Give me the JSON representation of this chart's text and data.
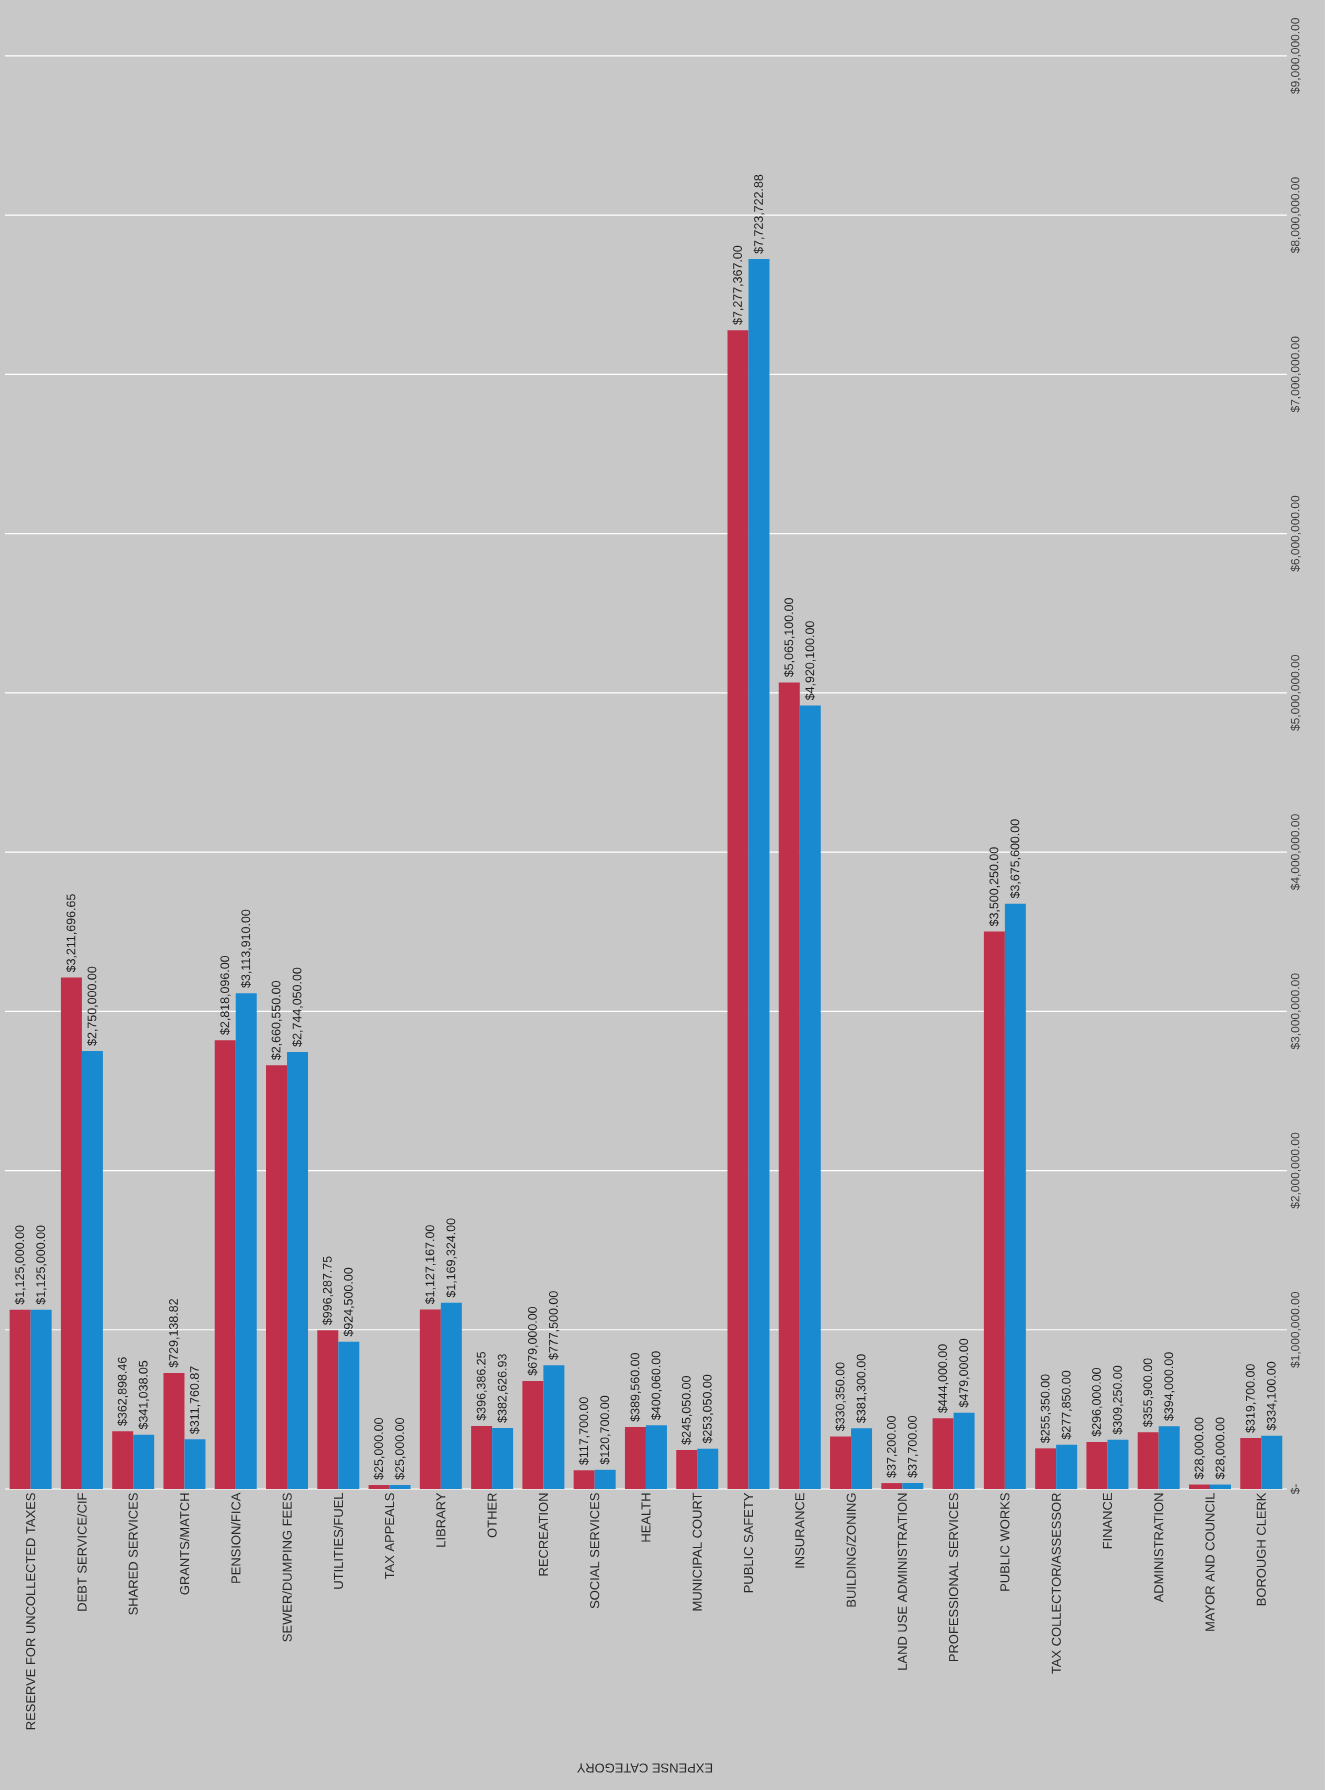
{
  "chart_data": {
    "type": "bar",
    "xlabel": "EXPENSE CATEGORY",
    "categories": [
      "RESERVE FOR UNCOLLECTED TAXES",
      "DEBT SERVICE/CIF",
      "SHARED SERVICES",
      "GRANTS/MATCH",
      "PENSION/FICA",
      "SEWER/DUMPING FEES",
      "UTILITIES/FUEL",
      "TAX APPEALS",
      "LIBRARY",
      "OTHER",
      "RECREATION",
      "SOCIAL SERVICES",
      "HEALTH",
      "MUNICIPAL COURT",
      "PUBLIC SAFETY",
      "INSURANCE",
      "BUILDING/ZONING",
      "LAND USE ADMINISTRATION",
      "PROFESSIONAL SERVICES",
      "PUBLIC WORKS",
      "TAX COLLECTOR/ASSESSOR",
      "FINANCE",
      "ADMINISTRATION",
      "MAYOR AND COUNCIL",
      "BOROUGH CLERK"
    ],
    "series": [
      {
        "color": "#c0304a",
        "values": [
          1125000,
          3211696.65,
          362898.46,
          729138.82,
          2818096,
          2660550,
          996287.75,
          25000,
          1127167,
          396386.25,
          679000,
          117700,
          389560,
          245050,
          7277367,
          5065100,
          330350,
          37200,
          444000,
          3500250,
          255350,
          296000,
          355900,
          28000,
          319700
        ],
        "value_labels": [
          "$1,125,000.00",
          "$3,211,696.65",
          "$362,898.46",
          "$729,138.82",
          "$2,818,096.00",
          "$2,660,550.00",
          "$996,287.75",
          "$25,000.00",
          "$1,127,167.00",
          "$396,386.25",
          "$679,000.00",
          "$117,700.00",
          "$389,560.00",
          "$245,050.00",
          "$7,277,367.00",
          "$5,065,100.00",
          "$330,350.00",
          "$37,200.00",
          "$444,000.00",
          "$3,500,250.00",
          "$255,350.00",
          "$296,000.00",
          "$355,900.00",
          "$28,000.00",
          "$319,700.00"
        ]
      },
      {
        "color": "#1a8ad0",
        "values": [
          1125000,
          2750000,
          341038.05,
          311760.87,
          3113910,
          2744050,
          924500,
          25000,
          1169324,
          382626.93,
          777500,
          120700,
          400060,
          253050,
          7723722.88,
          4920100,
          381300,
          37700,
          479000,
          3675600,
          277850,
          309250,
          394000,
          28000,
          334100
        ],
        "value_labels": [
          "$1,125,000.00",
          "$2,750,000.00",
          "$341,038.05",
          "$311,760.87",
          "$3,113,910.00",
          "$2,744,050.00",
          "$924,500.00",
          "$25,000.00",
          "$1,169,324.00",
          "$382,626.93",
          "$777,500.00",
          "$120,700.00",
          "$400,060.00",
          "$253,050.00",
          "$7,723,722.88",
          "$4,920,100.00",
          "$381,300.00",
          "$37,700.00",
          "$479,000.00",
          "$3,675,600.00",
          "$277,850.00",
          "$309,250.00",
          "$394,000.00",
          "$28,000.00",
          "$334,100.00"
        ]
      }
    ],
    "ylim": [
      0,
      9350000
    ],
    "yticks": [
      {
        "value": 0,
        "label": "$-"
      },
      {
        "value": 1000000,
        "label": "$1,000,000.00"
      },
      {
        "value": 2000000,
        "label": "$2,000,000.00"
      },
      {
        "value": 3000000,
        "label": "$3,000,000.00"
      },
      {
        "value": 4000000,
        "label": "$4,000,000.00"
      },
      {
        "value": 5000000,
        "label": "$5,000,000.00"
      },
      {
        "value": 6000000,
        "label": "$6,000,000.00"
      },
      {
        "value": 7000000,
        "label": "$7,000,000.00"
      },
      {
        "value": 8000000,
        "label": "$8,000,000.00"
      },
      {
        "value": 9000000,
        "label": "$9,000,000.00"
      }
    ],
    "grid": "y"
  }
}
